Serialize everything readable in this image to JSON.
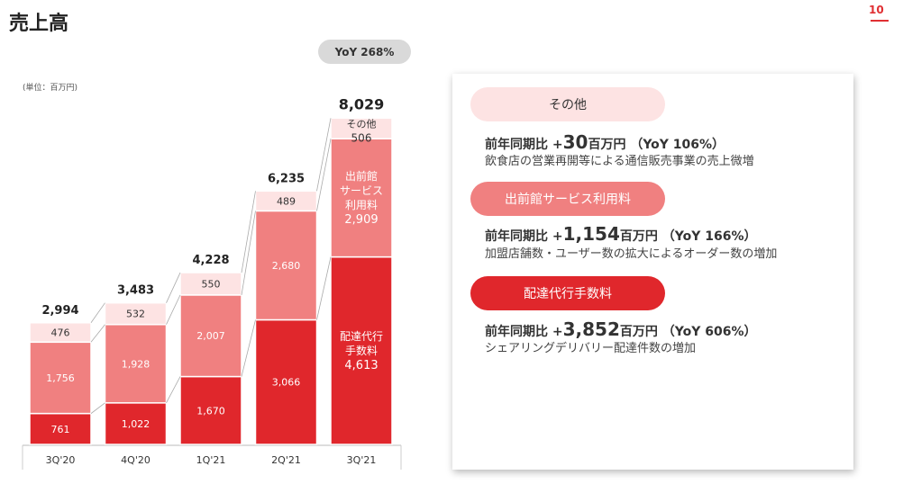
{
  "header": {
    "title": "売上高",
    "page_number": "10"
  },
  "chart_data": {
    "type": "bar",
    "stacked": true,
    "unit_label": "(単位：百万円)",
    "yoy_badge": "YoY 268%",
    "categories": [
      "3Q'20",
      "4Q'20",
      "1Q'21",
      "2Q'21",
      "3Q'21"
    ],
    "totals": [
      "2,994",
      "3,483",
      "4,228",
      "6,235",
      "8,029"
    ],
    "series": [
      {
        "name": "配達代行手数料",
        "color": "#e0272c",
        "label_color": "#ffffff",
        "values": [
          761,
          1022,
          1670,
          3066,
          4613
        ]
      },
      {
        "name": "出前館サービス利用料",
        "color": "#f08080",
        "label_color": "#ffffff",
        "values": [
          1756,
          1928,
          2007,
          2680,
          2909
        ]
      },
      {
        "name": "その他",
        "color": "#fde3e3",
        "label_color": "#333333",
        "values": [
          476,
          532,
          550,
          489,
          506
        ]
      }
    ],
    "last_bar_labels": [
      "配達代行\n手数料",
      "出前館\nサービス\n利用料",
      "その他"
    ],
    "ylim": [
      0,
      8500
    ]
  },
  "panel": {
    "items": [
      {
        "pill": "その他",
        "prefix": "前年同期比 +",
        "amount": "30",
        "suffix": "百万円 （YoY 106%）",
        "desc": "飲食店の営業再開等による通信販売事業の売上微増"
      },
      {
        "pill": "出前館サービス利用料",
        "prefix": "前年同期比 +",
        "amount": "1,154",
        "suffix": "百万円 （YoY 166%）",
        "desc": "加盟店舗数・ユーザー数の拡大によるオーダー数の増加"
      },
      {
        "pill": "配達代行手数料",
        "prefix": "前年同期比 +",
        "amount": "3,852",
        "suffix": "百万円 （YoY 606%）",
        "desc": "シェアリングデリバリー配達件数の増加"
      }
    ]
  }
}
